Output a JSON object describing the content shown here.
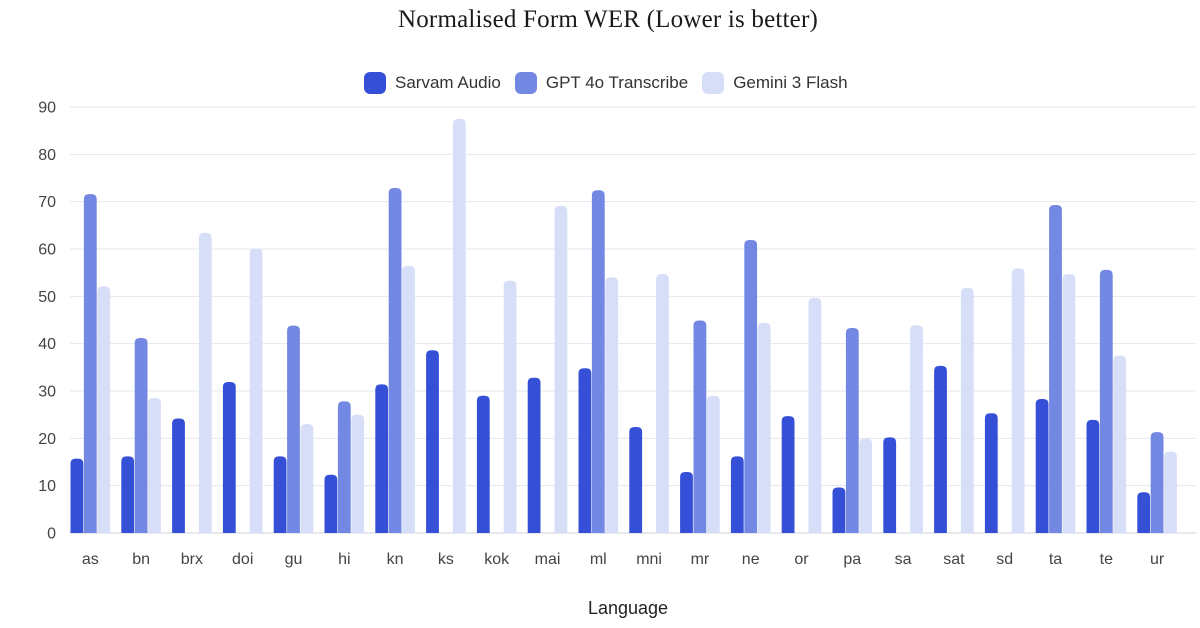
{
  "chart_data": {
    "type": "bar",
    "title": "Normalised Form WER (Lower is better)",
    "xlabel": "Language",
    "ylabel": "",
    "ylim": [
      0,
      90
    ],
    "yticks": [
      "0",
      "10",
      "20",
      "30",
      "40",
      "50",
      "60",
      "70",
      "80",
      "90"
    ],
    "grid": true,
    "legend_position": "top-center",
    "categories": [
      "as",
      "bn",
      "brx",
      "doi",
      "gu",
      "hi",
      "kn",
      "ks",
      "kok",
      "mai",
      "ml",
      "mni",
      "mr",
      "ne",
      "or",
      "pa",
      "sa",
      "sat",
      "sd",
      "ta",
      "te",
      "ur"
    ],
    "series": [
      {
        "name": "Sarvam Audio",
        "color": "#3550d6",
        "values": [
          15.7,
          16.2,
          24.2,
          31.9,
          16.2,
          12.3,
          31.4,
          38.6,
          29.0,
          32.8,
          34.8,
          22.4,
          12.9,
          16.2,
          24.7,
          9.6,
          20.2,
          35.3,
          25.3,
          28.3,
          23.9,
          8.6
        ]
      },
      {
        "name": "GPT 4o Transcribe",
        "color": "#7388e3",
        "values": [
          71.6,
          41.2,
          null,
          null,
          43.8,
          27.8,
          72.9,
          null,
          null,
          null,
          72.4,
          null,
          44.9,
          61.9,
          null,
          43.3,
          null,
          null,
          null,
          69.3,
          55.6,
          21.3
        ]
      },
      {
        "name": "Gemini 3 Flash",
        "color": "#d6dff7",
        "values": [
          52.1,
          28.5,
          63.4,
          60.1,
          23.0,
          25.0,
          56.4,
          87.5,
          53.3,
          69.1,
          54.0,
          54.7,
          29.0,
          44.4,
          49.7,
          19.9,
          43.9,
          51.8,
          55.9,
          54.7,
          37.5,
          17.2
        ]
      }
    ]
  }
}
